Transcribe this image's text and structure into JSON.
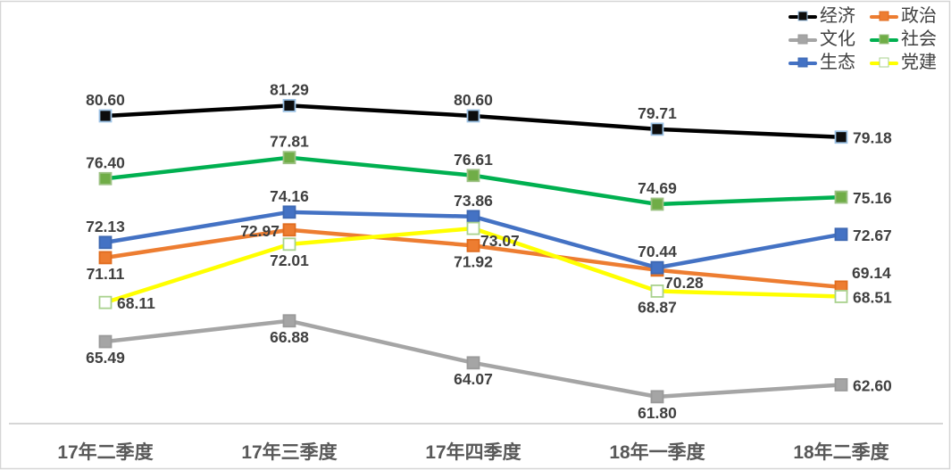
{
  "chart_data": {
    "type": "line",
    "title": "",
    "xlabel": "",
    "ylabel": "",
    "categories": [
      "17年二季度",
      "17年三季度",
      "17年四季度",
      "18年一季度",
      "18年二季度"
    ],
    "series": [
      {
        "name": "经济",
        "values": [
          80.6,
          81.29,
          80.6,
          79.71,
          79.18
        ],
        "color": "#000000",
        "marker_fill": "#0d0d0d",
        "marker_border": "#9dc3e6",
        "label_pos": [
          "above",
          "above",
          "above",
          "above",
          "right"
        ]
      },
      {
        "name": "政治",
        "values": [
          71.11,
          72.97,
          71.92,
          70.28,
          69.14
        ],
        "color": "#ED7D31",
        "marker_fill": "#ED7D31",
        "marker_border": "#e06c1f",
        "label_pos": [
          "below",
          "left",
          "below",
          "below-right",
          "above-right"
        ]
      },
      {
        "name": "文化",
        "values": [
          65.49,
          66.88,
          64.07,
          61.8,
          62.6
        ],
        "color": "#A5A5A5",
        "marker_fill": "#A5A5A5",
        "marker_border": "#9a9a9a",
        "label_pos": [
          "below",
          "below",
          "below",
          "below",
          "right"
        ]
      },
      {
        "name": "社会",
        "values": [
          76.4,
          77.81,
          76.61,
          74.69,
          75.16
        ],
        "color": "#00B050",
        "marker_fill": "#70AD47",
        "marker_border": "#9dc284",
        "label_pos": [
          "above",
          "above",
          "above",
          "above",
          "right"
        ]
      },
      {
        "name": "生态",
        "values": [
          72.13,
          74.16,
          73.86,
          70.44,
          72.67
        ],
        "color": "#4472C4",
        "marker_fill": "#4472C4",
        "marker_border": "#3e68b2",
        "label_pos": [
          "above",
          "above",
          "above",
          "above",
          "right"
        ]
      },
      {
        "name": "党建",
        "values": [
          68.11,
          72.01,
          73.07,
          68.87,
          68.51
        ],
        "color": "#FFFF00",
        "marker_fill": "#FFFFFF",
        "marker_border": "#A9D18E",
        "label_pos": [
          "right",
          "below",
          "below-right",
          "below",
          "right"
        ]
      }
    ],
    "ylim": [
      60,
      88
    ],
    "grid": false,
    "legend_position": "top-right",
    "data_label_color": "#404040",
    "axis_label_color": "#595959",
    "axis_line_color": "#c9c9c9",
    "border_color": "#d6d6d6"
  }
}
